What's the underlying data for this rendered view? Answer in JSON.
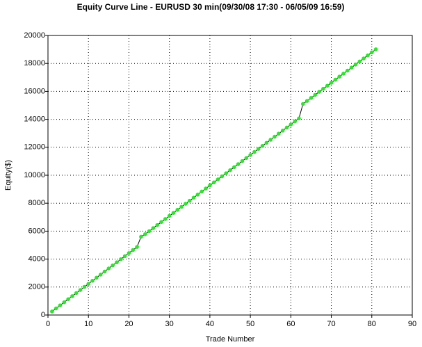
{
  "chart_data": {
    "type": "line",
    "title": "Equity Curve Line - EURUSD 30 min(09/30/08 17:30 - 06/05/09 16:59)",
    "x_label": "Trade Number",
    "y_label": "Equity($)",
    "x": [
      1,
      2,
      3,
      4,
      5,
      6,
      7,
      8,
      9,
      10,
      11,
      12,
      13,
      14,
      15,
      16,
      17,
      18,
      19,
      20,
      21,
      22,
      23,
      24,
      25,
      26,
      27,
      28,
      29,
      30,
      31,
      32,
      33,
      34,
      35,
      36,
      37,
      38,
      39,
      40,
      41,
      42,
      43,
      44,
      45,
      46,
      47,
      48,
      49,
      50,
      51,
      52,
      53,
      54,
      55,
      56,
      57,
      58,
      59,
      60,
      61,
      62,
      63,
      64,
      65,
      66,
      67,
      68,
      69,
      70,
      71,
      72,
      73,
      74,
      75,
      76,
      77,
      78,
      79,
      80,
      81
    ],
    "values": [
      250,
      470,
      690,
      910,
      1130,
      1350,
      1570,
      1790,
      2010,
      2230,
      2450,
      2670,
      2890,
      3110,
      3330,
      3550,
      3770,
      3990,
      4210,
      4430,
      4650,
      4870,
      5600,
      5780,
      5998,
      6216,
      6434,
      6652,
      6870,
      7088,
      7306,
      7524,
      7742,
      7960,
      8178,
      8396,
      8614,
      8832,
      9050,
      9268,
      9486,
      9704,
      9922,
      10140,
      10358,
      10576,
      10794,
      11012,
      11230,
      11448,
      11666,
      11884,
      12102,
      12320,
      12538,
      12756,
      12974,
      13192,
      13410,
      13628,
      13846,
      14064,
      15100,
      15317,
      15534,
      15751,
      15968,
      16185,
      16402,
      16619,
      16836,
      17053,
      17270,
      17487,
      17704,
      17921,
      18138,
      18355,
      18572,
      18789,
      19006
    ],
    "color": "#33e033",
    "line_color": "#000000",
    "xlim": [
      0,
      90
    ],
    "xticks": [
      0,
      10,
      20,
      30,
      40,
      50,
      60,
      70,
      80,
      90
    ],
    "ylim": [
      0,
      20000
    ],
    "yticks": [
      0,
      2000,
      4000,
      6000,
      8000,
      10000,
      12000,
      14000,
      16000,
      18000,
      20000
    ],
    "grid": true
  }
}
